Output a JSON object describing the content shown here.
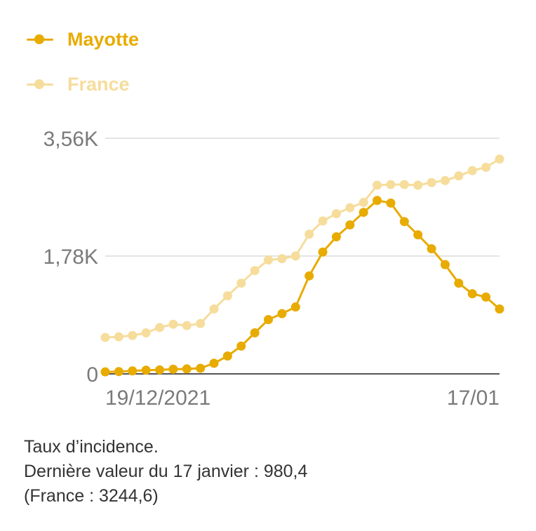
{
  "colors": {
    "mayotte": "#e8ab00",
    "france": "#f6dd9c",
    "grid": "#c8c8c8",
    "axis": "#555555",
    "tick_text": "#7a7a7a"
  },
  "chart_data": {
    "type": "line",
    "title": "",
    "xlabel": "",
    "ylabel": "",
    "legend_position": "top-left",
    "grid": true,
    "ylim": [
      0,
      3560
    ],
    "y_ticks": [
      {
        "value": 0,
        "label": "0"
      },
      {
        "value": 1780,
        "label": "1,78K"
      },
      {
        "value": 3560,
        "label": "3,56K"
      }
    ],
    "x_start_label": "19/12/2021",
    "x_end_label": "17/01",
    "x": [
      "19/12/2021",
      "20/12",
      "21/12",
      "22/12",
      "23/12",
      "24/12",
      "25/12",
      "26/12",
      "27/12",
      "28/12",
      "29/12",
      "30/12",
      "31/12",
      "01/01",
      "02/01",
      "03/01",
      "04/01",
      "05/01",
      "06/01",
      "07/01",
      "08/01",
      "09/01",
      "10/01",
      "11/01",
      "12/01",
      "13/01",
      "14/01",
      "15/01",
      "16/01",
      "17/01"
    ],
    "series": [
      {
        "name": "Mayotte",
        "values": [
          30,
          35,
          45,
          55,
          60,
          70,
          75,
          85,
          160,
          270,
          420,
          620,
          820,
          910,
          1010,
          1480,
          1840,
          2070,
          2250,
          2440,
          2620,
          2580,
          2300,
          2100,
          1890,
          1650,
          1370,
          1210,
          1160,
          980
        ]
      },
      {
        "name": "France",
        "values": [
          550,
          560,
          580,
          620,
          700,
          750,
          730,
          760,
          980,
          1180,
          1370,
          1560,
          1720,
          1740,
          1780,
          2110,
          2310,
          2420,
          2510,
          2590,
          2850,
          2860,
          2860,
          2850,
          2890,
          2920,
          2990,
          3070,
          3120,
          3245
        ]
      }
    ]
  },
  "footer": {
    "line1": "Taux d’incidence.",
    "line2": "Dernière valeur du 17 janvier : 980,4",
    "line3": "(France : 3244,6)"
  }
}
